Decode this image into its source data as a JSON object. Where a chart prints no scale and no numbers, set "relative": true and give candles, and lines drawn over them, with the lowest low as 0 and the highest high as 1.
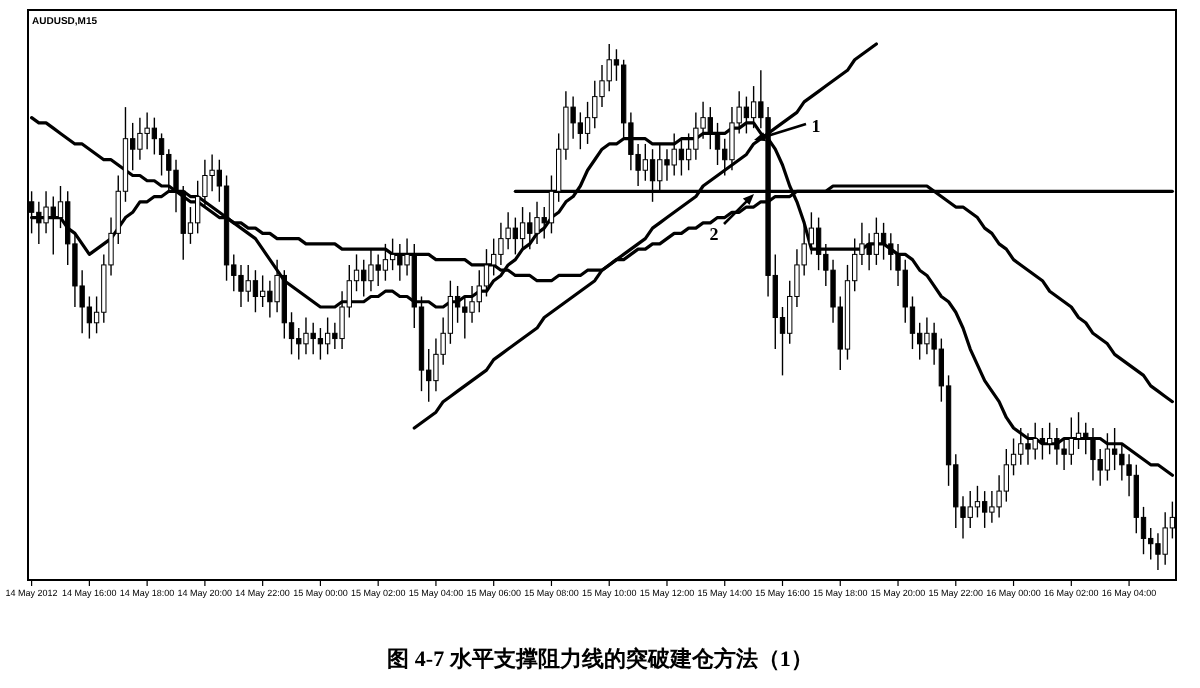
{
  "chart_data": {
    "type": "candlestick",
    "title": "图 4-7  水平支撑阻力线的突破建仓方法（1）",
    "subtitle": "AUDUSD,M15",
    "relative": true,
    "grid": false,
    "categories": [
      "14 May 2012",
      null,
      null,
      null,
      null,
      null,
      null,
      null,
      "14 May 16:00",
      null,
      null,
      null,
      null,
      null,
      null,
      null,
      "14 May 18:00",
      null,
      null,
      null,
      null,
      null,
      null,
      null,
      "14 May 20:00",
      null,
      null,
      null,
      null,
      null,
      null,
      null,
      "14 May 22:00",
      null,
      null,
      null,
      null,
      null,
      null,
      null,
      "15 May 00:00",
      null,
      null,
      null,
      null,
      null,
      null,
      null,
      "15 May 02:00",
      null,
      null,
      null,
      null,
      null,
      null,
      null,
      "15 May 04:00",
      null,
      null,
      null,
      null,
      null,
      null,
      null,
      "15 May 06:00",
      null,
      null,
      null,
      null,
      null,
      null,
      null,
      "15 May 08:00",
      null,
      null,
      null,
      null,
      null,
      null,
      null,
      "15 May 10:00",
      null,
      null,
      null,
      null,
      null,
      null,
      null,
      "15 May 12:00",
      null,
      null,
      null,
      null,
      null,
      null,
      null,
      "15 May 14:00",
      null,
      null,
      null,
      null,
      null,
      null,
      null,
      "15 May 16:00",
      null,
      null,
      null,
      null,
      null,
      null,
      null,
      "15 May 18:00",
      null,
      null,
      null,
      null,
      null,
      null,
      null,
      "15 May 20:00",
      null,
      null,
      null,
      null,
      null,
      null,
      null,
      "15 May 22:00",
      null,
      null,
      null,
      null,
      null,
      null,
      null,
      "16 May 00:00",
      null,
      null,
      null,
      null,
      null,
      null,
      null,
      "16 May 02:00",
      null,
      null,
      null,
      null,
      null,
      null,
      null,
      "16 May 04:00",
      null,
      null,
      null,
      null,
      null,
      null
    ],
    "annotations": [
      "1",
      "2"
    ],
    "color": "#000000",
    "ohlc": [
      [
        0.7,
        0.72,
        0.64,
        0.68
      ],
      [
        0.68,
        0.7,
        0.62,
        0.66
      ],
      [
        0.66,
        0.72,
        0.64,
        0.69
      ],
      [
        0.69,
        0.71,
        0.6,
        0.67
      ],
      [
        0.67,
        0.73,
        0.65,
        0.7
      ],
      [
        0.7,
        0.72,
        0.58,
        0.62
      ],
      [
        0.62,
        0.64,
        0.5,
        0.54
      ],
      [
        0.54,
        0.57,
        0.45,
        0.5
      ],
      [
        0.5,
        0.52,
        0.44,
        0.47
      ],
      [
        0.47,
        0.52,
        0.45,
        0.49
      ],
      [
        0.49,
        0.6,
        0.47,
        0.58
      ],
      [
        0.58,
        0.67,
        0.56,
        0.64
      ],
      [
        0.64,
        0.75,
        0.62,
        0.72
      ],
      [
        0.72,
        0.88,
        0.7,
        0.82
      ],
      [
        0.82,
        0.85,
        0.76,
        0.8
      ],
      [
        0.8,
        0.86,
        0.78,
        0.83
      ],
      [
        0.83,
        0.87,
        0.8,
        0.84
      ],
      [
        0.84,
        0.86,
        0.79,
        0.82
      ],
      [
        0.82,
        0.83,
        0.75,
        0.79
      ],
      [
        0.79,
        0.8,
        0.72,
        0.76
      ],
      [
        0.76,
        0.78,
        0.68,
        0.72
      ],
      [
        0.72,
        0.73,
        0.59,
        0.64
      ],
      [
        0.64,
        0.69,
        0.62,
        0.66
      ],
      [
        0.66,
        0.74,
        0.64,
        0.71
      ],
      [
        0.71,
        0.78,
        0.69,
        0.75
      ],
      [
        0.75,
        0.79,
        0.72,
        0.76
      ],
      [
        0.76,
        0.78,
        0.7,
        0.73
      ],
      [
        0.73,
        0.75,
        0.55,
        0.58
      ],
      [
        0.58,
        0.6,
        0.53,
        0.56
      ],
      [
        0.56,
        0.58,
        0.5,
        0.53
      ],
      [
        0.53,
        0.58,
        0.51,
        0.55
      ],
      [
        0.55,
        0.57,
        0.49,
        0.52
      ],
      [
        0.52,
        0.56,
        0.5,
        0.53
      ],
      [
        0.53,
        0.55,
        0.48,
        0.51
      ],
      [
        0.51,
        0.59,
        0.49,
        0.56
      ],
      [
        0.56,
        0.57,
        0.44,
        0.47
      ],
      [
        0.47,
        0.49,
        0.41,
        0.44
      ],
      [
        0.44,
        0.46,
        0.4,
        0.43
      ],
      [
        0.43,
        0.48,
        0.41,
        0.45
      ],
      [
        0.45,
        0.47,
        0.41,
        0.44
      ],
      [
        0.44,
        0.46,
        0.4,
        0.43
      ],
      [
        0.43,
        0.48,
        0.41,
        0.45
      ],
      [
        0.45,
        0.47,
        0.42,
        0.44
      ],
      [
        0.44,
        0.53,
        0.42,
        0.5
      ],
      [
        0.5,
        0.58,
        0.48,
        0.55
      ],
      [
        0.55,
        0.6,
        0.53,
        0.57
      ],
      [
        0.57,
        0.59,
        0.52,
        0.55
      ],
      [
        0.55,
        0.61,
        0.53,
        0.58
      ],
      [
        0.58,
        0.6,
        0.54,
        0.57
      ],
      [
        0.57,
        0.62,
        0.55,
        0.59
      ],
      [
        0.59,
        0.63,
        0.57,
        0.6
      ],
      [
        0.6,
        0.62,
        0.55,
        0.58
      ],
      [
        0.58,
        0.63,
        0.56,
        0.6
      ],
      [
        0.6,
        0.62,
        0.46,
        0.5
      ],
      [
        0.5,
        0.52,
        0.34,
        0.38
      ],
      [
        0.38,
        0.42,
        0.32,
        0.36
      ],
      [
        0.36,
        0.44,
        0.34,
        0.41
      ],
      [
        0.41,
        0.48,
        0.39,
        0.45
      ],
      [
        0.45,
        0.55,
        0.43,
        0.52
      ],
      [
        0.52,
        0.54,
        0.47,
        0.5
      ],
      [
        0.5,
        0.52,
        0.44,
        0.49
      ],
      [
        0.49,
        0.54,
        0.47,
        0.51
      ],
      [
        0.51,
        0.57,
        0.49,
        0.54
      ],
      [
        0.54,
        0.61,
        0.52,
        0.58
      ],
      [
        0.58,
        0.63,
        0.56,
        0.6
      ],
      [
        0.6,
        0.66,
        0.58,
        0.63
      ],
      [
        0.63,
        0.68,
        0.61,
        0.65
      ],
      [
        0.65,
        0.67,
        0.6,
        0.63
      ],
      [
        0.63,
        0.69,
        0.61,
        0.66
      ],
      [
        0.66,
        0.68,
        0.61,
        0.64
      ],
      [
        0.64,
        0.7,
        0.62,
        0.67
      ],
      [
        0.67,
        0.69,
        0.63,
        0.66
      ],
      [
        0.66,
        0.75,
        0.64,
        0.72
      ],
      [
        0.72,
        0.83,
        0.7,
        0.8
      ],
      [
        0.8,
        0.91,
        0.78,
        0.88
      ],
      [
        0.88,
        0.9,
        0.82,
        0.85
      ],
      [
        0.85,
        0.87,
        0.8,
        0.83
      ],
      [
        0.83,
        0.89,
        0.81,
        0.86
      ],
      [
        0.86,
        0.93,
        0.84,
        0.9
      ],
      [
        0.9,
        0.96,
        0.88,
        0.93
      ],
      [
        0.93,
        1.0,
        0.91,
        0.97
      ],
      [
        0.97,
        0.99,
        0.93,
        0.96
      ],
      [
        0.96,
        0.97,
        0.82,
        0.85
      ],
      [
        0.85,
        0.87,
        0.76,
        0.79
      ],
      [
        0.79,
        0.81,
        0.73,
        0.76
      ],
      [
        0.76,
        0.81,
        0.74,
        0.78
      ],
      [
        0.78,
        0.8,
        0.7,
        0.74
      ],
      [
        0.74,
        0.81,
        0.72,
        0.78
      ],
      [
        0.78,
        0.8,
        0.74,
        0.77
      ],
      [
        0.77,
        0.83,
        0.75,
        0.8
      ],
      [
        0.8,
        0.82,
        0.75,
        0.78
      ],
      [
        0.78,
        0.83,
        0.76,
        0.8
      ],
      [
        0.8,
        0.87,
        0.78,
        0.84
      ],
      [
        0.84,
        0.89,
        0.82,
        0.86
      ],
      [
        0.86,
        0.88,
        0.8,
        0.83
      ],
      [
        0.83,
        0.85,
        0.77,
        0.8
      ],
      [
        0.8,
        0.82,
        0.75,
        0.78
      ],
      [
        0.78,
        0.88,
        0.76,
        0.85
      ],
      [
        0.85,
        0.91,
        0.83,
        0.88
      ],
      [
        0.88,
        0.9,
        0.83,
        0.86
      ],
      [
        0.86,
        0.92,
        0.84,
        0.89
      ],
      [
        0.89,
        0.95,
        0.84,
        0.86
      ],
      [
        0.86,
        0.88,
        0.52,
        0.56
      ],
      [
        0.56,
        0.6,
        0.42,
        0.48
      ],
      [
        0.48,
        0.5,
        0.37,
        0.45
      ],
      [
        0.45,
        0.55,
        0.43,
        0.52
      ],
      [
        0.52,
        0.61,
        0.5,
        0.58
      ],
      [
        0.58,
        0.66,
        0.56,
        0.62
      ],
      [
        0.62,
        0.68,
        0.6,
        0.65
      ],
      [
        0.65,
        0.67,
        0.57,
        0.6
      ],
      [
        0.6,
        0.62,
        0.54,
        0.57
      ],
      [
        0.57,
        0.59,
        0.47,
        0.5
      ],
      [
        0.5,
        0.52,
        0.38,
        0.42
      ],
      [
        0.42,
        0.58,
        0.4,
        0.55
      ],
      [
        0.55,
        0.63,
        0.53,
        0.6
      ],
      [
        0.6,
        0.66,
        0.58,
        0.62
      ],
      [
        0.62,
        0.64,
        0.57,
        0.6
      ],
      [
        0.6,
        0.67,
        0.58,
        0.64
      ],
      [
        0.64,
        0.66,
        0.59,
        0.62
      ],
      [
        0.62,
        0.64,
        0.57,
        0.6
      ],
      [
        0.6,
        0.62,
        0.54,
        0.57
      ],
      [
        0.57,
        0.59,
        0.47,
        0.5
      ],
      [
        0.5,
        0.52,
        0.42,
        0.45
      ],
      [
        0.45,
        0.47,
        0.4,
        0.43
      ],
      [
        0.43,
        0.48,
        0.41,
        0.45
      ],
      [
        0.45,
        0.47,
        0.39,
        0.42
      ],
      [
        0.42,
        0.44,
        0.32,
        0.35
      ],
      [
        0.35,
        0.37,
        0.16,
        0.2
      ],
      [
        0.2,
        0.22,
        0.08,
        0.12
      ],
      [
        0.12,
        0.14,
        0.06,
        0.1
      ],
      [
        0.1,
        0.15,
        0.08,
        0.12
      ],
      [
        0.12,
        0.16,
        0.1,
        0.13
      ],
      [
        0.13,
        0.15,
        0.08,
        0.11
      ],
      [
        0.11,
        0.15,
        0.09,
        0.12
      ],
      [
        0.12,
        0.18,
        0.1,
        0.15
      ],
      [
        0.15,
        0.23,
        0.13,
        0.2
      ],
      [
        0.2,
        0.25,
        0.18,
        0.22
      ],
      [
        0.22,
        0.27,
        0.2,
        0.24
      ],
      [
        0.24,
        0.26,
        0.2,
        0.23
      ],
      [
        0.23,
        0.28,
        0.21,
        0.25
      ],
      [
        0.25,
        0.27,
        0.21,
        0.24
      ],
      [
        0.24,
        0.28,
        0.22,
        0.25
      ],
      [
        0.25,
        0.27,
        0.2,
        0.23
      ],
      [
        0.23,
        0.25,
        0.19,
        0.22
      ],
      [
        0.22,
        0.29,
        0.2,
        0.25
      ],
      [
        0.25,
        0.3,
        0.23,
        0.26
      ],
      [
        0.26,
        0.28,
        0.22,
        0.25
      ],
      [
        0.25,
        0.27,
        0.17,
        0.21
      ],
      [
        0.21,
        0.23,
        0.16,
        0.19
      ],
      [
        0.19,
        0.26,
        0.17,
        0.23
      ],
      [
        0.23,
        0.27,
        0.19,
        0.22
      ],
      [
        0.22,
        0.24,
        0.17,
        0.2
      ],
      [
        0.2,
        0.22,
        0.14,
        0.18
      ],
      [
        0.18,
        0.2,
        0.07,
        0.1
      ],
      [
        0.1,
        0.12,
        0.03,
        0.06
      ],
      [
        0.06,
        0.08,
        0.02,
        0.05
      ],
      [
        0.05,
        0.07,
        0,
        0.03
      ],
      [
        0.03,
        0.11,
        0.01,
        0.08
      ],
      [
        0.08,
        0.13,
        0.06,
        0.1
      ]
    ],
    "series": [
      {
        "type": "line",
        "color": "#000000",
        "values": [
          0.86,
          0.85,
          0.85,
          0.84,
          0.83,
          0.82,
          0.81,
          0.81,
          0.8,
          0.79,
          0.78,
          0.78,
          0.77,
          0.76,
          0.75,
          0.75,
          0.74,
          0.74,
          0.73,
          0.73,
          0.72,
          0.71,
          0.7,
          0.7,
          0.69,
          0.68,
          0.67,
          0.67,
          0.66,
          0.66,
          0.65,
          0.65,
          0.64,
          0.64,
          0.63,
          0.63,
          0.63,
          0.63,
          0.62,
          0.62,
          0.62,
          0.62,
          0.62,
          0.61,
          0.61,
          0.61,
          0.61,
          0.61,
          0.61,
          0.61,
          0.6,
          0.6,
          0.6,
          0.6,
          0.6,
          0.6,
          0.59,
          0.59,
          0.59,
          0.59,
          0.59,
          0.58,
          0.58,
          0.58,
          0.58,
          0.57,
          0.57,
          0.56,
          0.56,
          0.56,
          0.55,
          0.55,
          0.55,
          0.56,
          0.56,
          0.56,
          0.56,
          0.57,
          0.57,
          0.57,
          0.58,
          0.59,
          0.59,
          0.6,
          0.61,
          0.61,
          0.62,
          0.62,
          0.63,
          0.64,
          0.64,
          0.65,
          0.65,
          0.66,
          0.66,
          0.67,
          0.67,
          0.68,
          0.68,
          0.69,
          0.69,
          0.7,
          0.7,
          0.71,
          0.71,
          0.71,
          0.72,
          0.72,
          0.72,
          0.72,
          0.72,
          0.73,
          0.73,
          0.73,
          0.73,
          0.73,
          0.73,
          0.73,
          0.73,
          0.73,
          0.73,
          0.73,
          0.73,
          0.73,
          0.73,
          0.72,
          0.71,
          0.7,
          0.69,
          0.69,
          0.68,
          0.67,
          0.65,
          0.64,
          0.62,
          0.61,
          0.59,
          0.58,
          0.57,
          0.56,
          0.55,
          0.53,
          0.52,
          0.51,
          0.5,
          0.48,
          0.47,
          0.45,
          0.44,
          0.43,
          0.41,
          0.4,
          0.39,
          0.38,
          0.37,
          0.35,
          0.34,
          0.33,
          0.32
        ]
      },
      {
        "type": "line",
        "color": "#000000",
        "values": [
          0.67,
          0.67,
          0.67,
          0.67,
          0.67,
          0.65,
          0.64,
          0.62,
          0.6,
          0.61,
          0.62,
          0.63,
          0.65,
          0.67,
          0.68,
          0.7,
          0.7,
          0.71,
          0.71,
          0.72,
          0.72,
          0.72,
          0.71,
          0.71,
          0.7,
          0.69,
          0.68,
          0.67,
          0.66,
          0.65,
          0.64,
          0.63,
          0.61,
          0.59,
          0.57,
          0.55,
          0.54,
          0.53,
          0.52,
          0.51,
          0.5,
          0.5,
          0.5,
          0.51,
          0.51,
          0.51,
          0.51,
          0.52,
          0.52,
          0.53,
          0.53,
          0.52,
          0.52,
          0.51,
          0.51,
          0.51,
          0.5,
          0.5,
          0.51,
          0.51,
          0.52,
          0.52,
          0.53,
          0.53,
          0.55,
          0.56,
          0.58,
          0.59,
          0.61,
          0.62,
          0.64,
          0.65,
          0.67,
          0.68,
          0.7,
          0.71,
          0.73,
          0.76,
          0.78,
          0.8,
          0.81,
          0.81,
          0.82,
          0.82,
          0.82,
          0.82,
          0.81,
          0.81,
          0.81,
          0.81,
          0.82,
          0.82,
          0.82,
          0.83,
          0.83,
          0.83,
          0.83,
          0.84,
          0.84,
          0.85,
          0.85,
          0.83,
          0.82,
          0.8,
          0.77,
          0.73,
          0.7,
          0.66,
          0.61,
          0.61,
          0.61,
          0.61,
          0.61,
          0.61,
          0.61,
          0.61,
          0.62,
          0.62,
          0.62,
          0.61,
          0.6,
          0.6,
          0.59,
          0.57,
          0.56,
          0.54,
          0.52,
          0.51,
          0.49,
          0.46,
          0.42,
          0.39,
          0.36,
          0.34,
          0.32,
          0.29,
          0.27,
          0.26,
          0.25,
          0.25,
          0.24,
          0.24,
          0.24,
          0.25,
          0.25,
          0.25,
          0.25,
          0.25,
          0.25,
          0.24,
          0.24,
          0.24,
          0.23,
          0.22,
          0.21,
          0.2,
          0.2,
          0.19,
          0.18
        ]
      },
      {
        "type": "line",
        "color": "#000000",
        "values": [
          null,
          null,
          null,
          null,
          null,
          null,
          null,
          null,
          null,
          null,
          null,
          null,
          null,
          null,
          null,
          null,
          null,
          null,
          null,
          null,
          null,
          null,
          null,
          null,
          null,
          null,
          null,
          null,
          null,
          null,
          null,
          null,
          null,
          null,
          null,
          null,
          null,
          null,
          null,
          null,
          null,
          null,
          null,
          null,
          null,
          null,
          null,
          null,
          null,
          null,
          null,
          null,
          null,
          null,
          null,
          null,
          null,
          null,
          null,
          null,
          null,
          null,
          null,
          null,
          null,
          null,
          null,
          0.72,
          0.72,
          0.72,
          0.72,
          0.72,
          0.72,
          0.72,
          0.72,
          0.72,
          0.72,
          0.72,
          0.72,
          0.72,
          0.72,
          0.72,
          0.72,
          0.72,
          0.72,
          0.72,
          0.72,
          0.72,
          0.72,
          0.72,
          0.72,
          0.72,
          0.72,
          0.72,
          0.72,
          0.72,
          0.72,
          0.72,
          0.72,
          0.72,
          0.72,
          0.72,
          0.72,
          0.72,
          0.72,
          0.72,
          0.72,
          0.72,
          0.72,
          0.72,
          0.72,
          0.72,
          0.72,
          0.72,
          0.72,
          0.72,
          0.72,
          0.72,
          0.72,
          0.72,
          0.72,
          0.72,
          0.72,
          0.72,
          0.72,
          0.72,
          0.72,
          0.72,
          0.72,
          0.72,
          0.72,
          0.72,
          0.72,
          0.72,
          0.72,
          0.72,
          0.72,
          0.72,
          0.72,
          0.72,
          0.72,
          0.72,
          0.72,
          0.72,
          0.72,
          0.72,
          0.72,
          0.72,
          0.72,
          0.72,
          0.72,
          0.72,
          0.72,
          0.72,
          0.72,
          0.72,
          0.72,
          0.72,
          0.72
        ]
      },
      {
        "type": "line",
        "color": "#000000",
        "values": [
          null,
          null,
          null,
          null,
          null,
          null,
          null,
          null,
          null,
          null,
          null,
          null,
          null,
          null,
          null,
          null,
          null,
          null,
          null,
          null,
          null,
          null,
          null,
          null,
          null,
          null,
          null,
          null,
          null,
          null,
          null,
          null,
          null,
          null,
          null,
          null,
          null,
          null,
          null,
          null,
          null,
          null,
          null,
          null,
          null,
          null,
          null,
          null,
          null,
          null,
          null,
          null,
          null,
          0.27,
          0.28,
          0.29,
          0.3,
          0.32,
          0.33,
          0.34,
          0.35,
          0.36,
          0.37,
          0.38,
          0.4,
          0.41,
          0.42,
          0.43,
          0.44,
          0.45,
          0.46,
          0.48,
          0.49,
          0.5,
          0.51,
          0.52,
          0.53,
          0.54,
          0.55,
          0.57,
          0.58,
          0.59,
          0.6,
          0.61,
          0.62,
          0.63,
          0.65,
          0.66,
          0.67,
          0.68,
          0.69,
          0.7,
          0.71,
          0.73,
          0.74,
          0.75,
          0.76,
          0.77,
          0.78,
          0.79,
          0.81,
          0.82,
          0.83,
          0.84,
          0.85,
          0.86,
          0.87,
          0.89,
          0.9,
          0.91,
          0.92,
          0.93,
          0.94,
          0.95,
          0.97,
          0.98,
          0.99,
          1.0,
          null,
          null,
          null,
          null,
          null,
          null,
          null,
          null,
          null,
          null,
          null,
          null,
          null,
          null,
          null,
          null,
          null,
          null,
          null,
          null,
          null,
          null,
          null,
          null,
          null,
          null,
          null,
          null,
          null,
          null,
          null,
          null,
          null,
          null,
          null,
          null,
          null,
          null,
          null,
          null,
          null
        ]
      }
    ]
  }
}
